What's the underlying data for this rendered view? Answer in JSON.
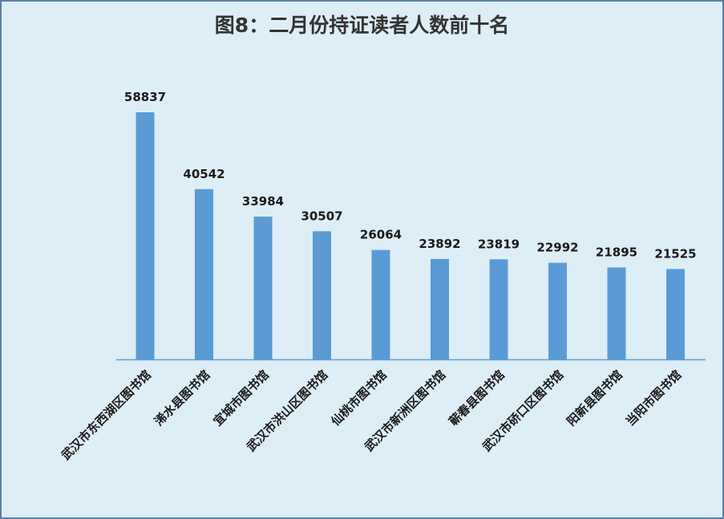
{
  "chart_data": {
    "type": "bar",
    "title": "图8：二月份持证读者人数前十名",
    "xlabel": "",
    "ylabel": "",
    "categories": [
      "武汉市东西湖区图书馆",
      "浠水县图书馆",
      "宜城市图书馆",
      "武汉市洪山区图书馆",
      "仙桃市图书馆",
      "武汉市新洲区图书馆",
      "蕲春县图书馆",
      "武汉市硚口区图书馆",
      "阳新县图书馆",
      "当阳市图书馆"
    ],
    "values": [
      58837,
      40542,
      33984,
      30507,
      26064,
      23892,
      23819,
      22992,
      21895,
      21525
    ],
    "data_labels": [
      "58837",
      "40542",
      "33984",
      "30507",
      "26064",
      "23892",
      "23819",
      "22992",
      "21895",
      "21525"
    ],
    "ylim": [
      0,
      58837
    ],
    "grid": false,
    "legend": "none",
    "colors": {
      "bar": "#5b9bd5",
      "axis": "#5b9bd5",
      "background": "#ddeef6",
      "border": "#5b7fa6",
      "text": "#1a1a1a",
      "title": "#333333"
    }
  }
}
